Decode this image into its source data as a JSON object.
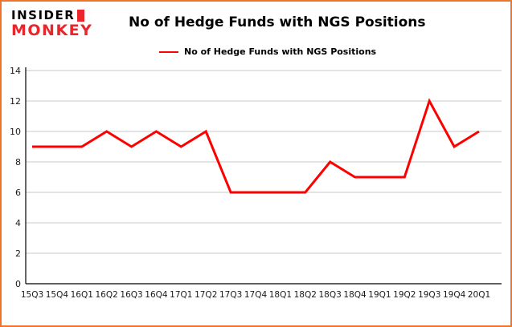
{
  "logo": {
    "line1": "INSIDER",
    "line2": "MONKEY"
  },
  "header": {
    "title": "No of Hedge Funds with NGS Positions"
  },
  "legend": {
    "label": "No of Hedge Funds with NGS Positions",
    "color": "#ff0000"
  },
  "colors": {
    "border": "#f0752b",
    "logo_red": "#e8262c",
    "grid": "#c8c8c8",
    "axis": "#000000",
    "tick_text": "#1a1a1a",
    "line": "#ff0000"
  },
  "chart_data": {
    "type": "line",
    "title": "No of Hedge Funds with NGS Positions",
    "categories": [
      "15Q3",
      "15Q4",
      "16Q1",
      "16Q2",
      "16Q3",
      "16Q4",
      "17Q1",
      "17Q2",
      "17Q3",
      "17Q4",
      "18Q1",
      "18Q2",
      "18Q3",
      "18Q4",
      "19Q1",
      "19Q2",
      "19Q3",
      "19Q4",
      "20Q1"
    ],
    "values": [
      9,
      9,
      9,
      10,
      9,
      10,
      9,
      10,
      6,
      6,
      6,
      6,
      8,
      7,
      7,
      7,
      12,
      9,
      10
    ],
    "xlabel": "",
    "ylabel": "",
    "ylim": [
      0,
      14
    ],
    "yticks": [
      0,
      2,
      4,
      6,
      8,
      10,
      12,
      14
    ],
    "grid": true,
    "legend_position": "top",
    "line_color": "#ff0000"
  }
}
